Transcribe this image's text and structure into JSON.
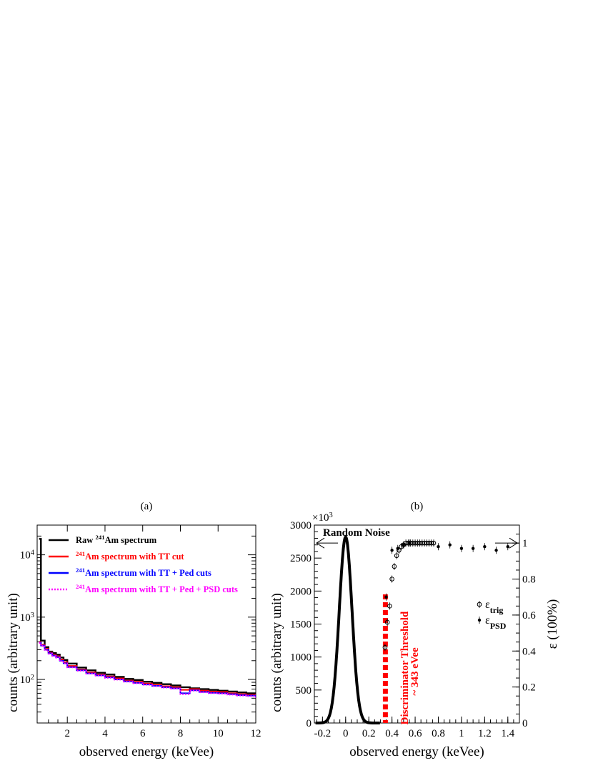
{
  "chart_data": [
    {
      "panel_label": "(a)",
      "type": "line",
      "ylog": true,
      "xlabel": "observed energy (keVee)",
      "ylabel": "counts (arbitrary unit)",
      "xlim": [
        0.4,
        12
      ],
      "ylim": [
        20,
        30000
      ],
      "xticks": [
        "2",
        "4",
        "6",
        "8",
        "10",
        "12"
      ],
      "xtick_values": [
        2,
        4,
        6,
        8,
        10,
        12
      ],
      "yticks": [
        {
          "base": "10",
          "exp": "2",
          "value": 100
        },
        {
          "base": "10",
          "exp": "3",
          "value": 1000
        },
        {
          "base": "10",
          "exp": "4",
          "value": 10000
        }
      ],
      "grid": false,
      "legend_position": "top",
      "x": [
        0.5,
        0.6,
        0.8,
        1.0,
        1.2,
        1.4,
        1.6,
        1.8,
        2.0,
        2.5,
        3.0,
        3.5,
        4.0,
        4.5,
        5.0,
        5.5,
        6.0,
        6.5,
        7.0,
        7.5,
        8.0,
        8.5,
        9.0,
        9.5,
        10.0,
        10.5,
        11.0,
        11.5,
        12.0
      ],
      "series": [
        {
          "name_parts": [
            "Raw ",
            "241",
            "Am spectrum"
          ],
          "color": "#000000",
          "dash": "solid",
          "values": [
            18000,
            420,
            330,
            280,
            265,
            250,
            225,
            205,
            180,
            155,
            140,
            128,
            120,
            110,
            102,
            98,
            92,
            88,
            84,
            80,
            75,
            72,
            70,
            68,
            66,
            64,
            62,
            60,
            57
          ]
        },
        {
          "name_parts": [
            "",
            "241",
            "Am spectrum with TT cut"
          ],
          "color": "#ff0000",
          "dash": "solid",
          "values": [
            400,
            360,
            310,
            270,
            250,
            235,
            210,
            190,
            165,
            145,
            130,
            120,
            112,
            104,
            96,
            92,
            86,
            82,
            78,
            75,
            68,
            70,
            66,
            64,
            63,
            60,
            58,
            57,
            54
          ]
        },
        {
          "name_parts": [
            "",
            "241",
            "Am spectrum with TT + Ped cuts"
          ],
          "color": "#0000ff",
          "dash": "solid",
          "values": [
            390,
            350,
            300,
            262,
            242,
            228,
            200,
            182,
            158,
            140,
            125,
            116,
            108,
            100,
            93,
            88,
            83,
            79,
            75,
            72,
            60,
            67,
            63,
            61,
            60,
            58,
            56,
            55,
            53
          ]
        },
        {
          "name_parts": [
            "",
            "241",
            "Am spectrum with TT + Ped + PSD cuts"
          ],
          "color": "#ff00ff",
          "dash": "dotted",
          "values": [
            385,
            345,
            295,
            258,
            238,
            224,
            197,
            180,
            156,
            138,
            124,
            115,
            106,
            99,
            92,
            87,
            82,
            78,
            74,
            71,
            58,
            66,
            62,
            60,
            59,
            57,
            55,
            54,
            52
          ]
        }
      ]
    },
    {
      "panel_label": "(b)",
      "type": "line",
      "xlabel": "observed energy (keVee)",
      "ylabel": "counts (arbitrary unit)",
      "ylabel_right": "ε (100%)",
      "y_multiplier": {
        "base": "×10",
        "exp": "3"
      },
      "xlim": [
        -0.27,
        1.5
      ],
      "ylim": [
        0,
        3000
      ],
      "ylim_right": [
        0,
        1.1
      ],
      "xticks": [
        "-0.2",
        "0",
        "0.2",
        "0.4",
        "0.6",
        "0.8",
        "1",
        "1.2",
        "1.4"
      ],
      "xtick_values": [
        -0.2,
        0,
        0.2,
        0.4,
        0.6,
        0.8,
        1.0,
        1.2,
        1.4
      ],
      "yticks": [
        "0",
        "500",
        "1000",
        "1500",
        "2000",
        "2500",
        "3000"
      ],
      "ytick_values": [
        0,
        500,
        1000,
        1500,
        2000,
        2500,
        3000
      ],
      "yticks_right": [
        "0",
        "0.2",
        "0.4",
        "0.6",
        "0.8",
        "1"
      ],
      "ytick_values_right": [
        0,
        0.2,
        0.4,
        0.6,
        0.8,
        1.0
      ],
      "grid": false,
      "noise_peak": {
        "label": "Random Noise",
        "mean": 0.0,
        "sigma": 0.055,
        "amplitude": 2820,
        "color": "#000000"
      },
      "threshold": {
        "x": 0.343,
        "y_top": 1950,
        "line1": "Discriminator Threshold",
        "line2": "~ 343 eVee",
        "color": "#ff0000"
      },
      "series": [
        {
          "name": "ε",
          "subscript": "trig",
          "marker": "open-circle",
          "axis": "right",
          "x": [
            0.34,
            0.36,
            0.38,
            0.4,
            0.42,
            0.44,
            0.46,
            0.48,
            0.5,
            0.52,
            0.54,
            0.56,
            0.58,
            0.6,
            0.62,
            0.64,
            0.66,
            0.68,
            0.7,
            0.72,
            0.74,
            0.76
          ],
          "values": [
            0.42,
            0.56,
            0.65,
            0.8,
            0.87,
            0.93,
            0.96,
            0.98,
            0.99,
            1.0,
            1.0,
            1.0,
            1.0,
            1.0,
            1.0,
            1.0,
            1.0,
            1.0,
            1.0,
            1.0,
            1.0,
            1.0
          ]
        },
        {
          "name": "ε",
          "subscript": "PSD",
          "marker": "filled-circle",
          "axis": "right",
          "x": [
            0.35,
            0.4,
            0.45,
            0.5,
            0.55,
            0.8,
            0.9,
            1.0,
            1.1,
            1.2,
            1.3,
            1.4
          ],
          "values": [
            0.7,
            0.96,
            0.97,
            0.99,
            1.0,
            0.98,
            0.99,
            0.97,
            0.97,
            0.98,
            0.96,
            0.98
          ]
        }
      ]
    }
  ]
}
